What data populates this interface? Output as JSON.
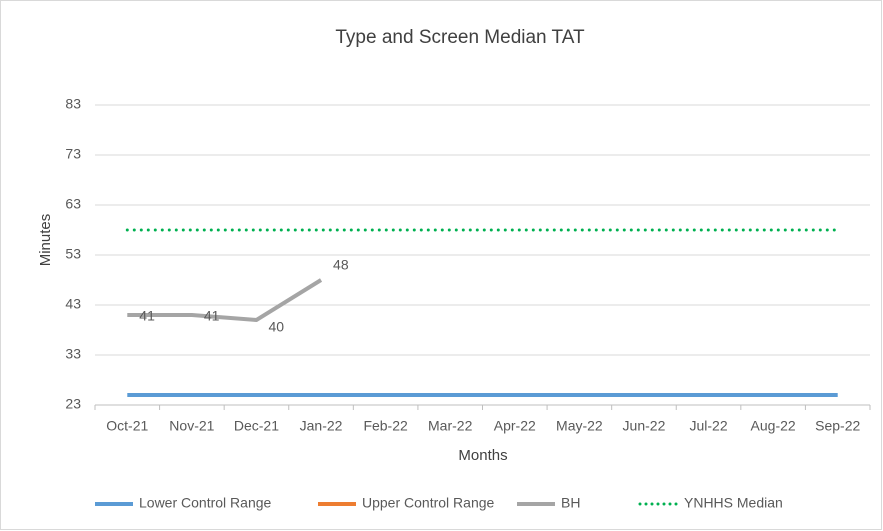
{
  "chart_data": {
    "type": "line",
    "title": "Type and Screen Median TAT",
    "x_label": "Months",
    "y_label": "Minutes",
    "categories": [
      "Oct-21",
      "Nov-21",
      "Dec-21",
      "Jan-22",
      "Feb-22",
      "Mar-22",
      "Apr-22",
      "May-22",
      "Jun-22",
      "Jul-22",
      "Aug-22",
      "Sep-22"
    ],
    "series": [
      {
        "name": "Lower Control Range",
        "color": "#5b9bd5",
        "style": "solid",
        "values": [
          25,
          25,
          25,
          25,
          25,
          25,
          25,
          25,
          25,
          25,
          25,
          25
        ]
      },
      {
        "name": "Upper Control Range",
        "color": "#ed7d31",
        "style": "solid",
        "values": [
          null,
          null,
          null,
          null,
          null,
          null,
          null,
          null,
          null,
          null,
          null,
          null
        ]
      },
      {
        "name": "BH",
        "color": "#a5a5a5",
        "style": "solid",
        "data_labels": true,
        "values": [
          41,
          41,
          40,
          48,
          null,
          null,
          null,
          null,
          null,
          null,
          null,
          null
        ]
      },
      {
        "name": "YNHHS Median",
        "color": "#00b050",
        "style": "dotted",
        "values": [
          58,
          58,
          58,
          58,
          58,
          58,
          58,
          58,
          58,
          58,
          58,
          58
        ]
      }
    ],
    "ylim": [
      23,
      83
    ],
    "yticks": [
      23,
      33,
      43,
      53,
      63,
      73,
      83
    ],
    "grid": true,
    "legend": "bottom"
  }
}
